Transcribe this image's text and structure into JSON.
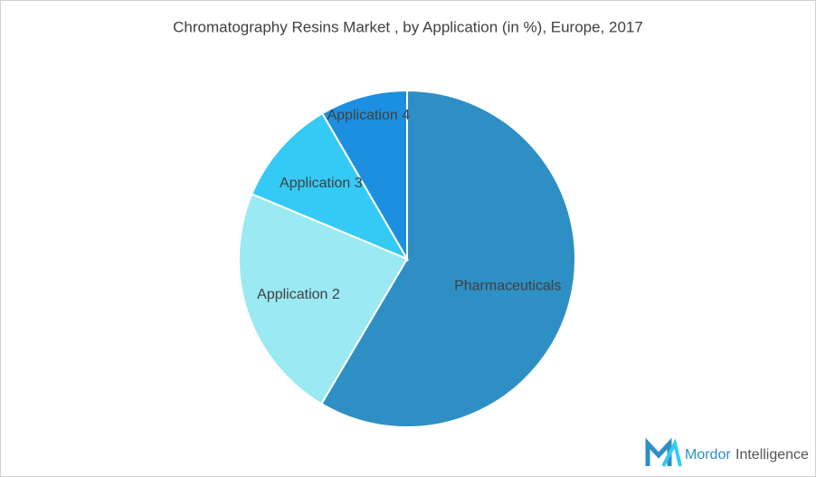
{
  "chart_data": {
    "type": "pie",
    "title": "Chromatography Resins Market , by  Application (in %), Europe, 2017",
    "categories": [
      "Pharmaceuticals",
      "Application 2",
      "Application 3",
      "Application 4"
    ],
    "values": [
      58.5,
      22.8,
      10.3,
      8.4
    ],
    "colors": [
      "#2e8fc4",
      "#9ae9f3",
      "#35caf5",
      "#1d8fe0"
    ]
  },
  "logo": {
    "text_1": "Mordor",
    "text_2": "Intelligence"
  }
}
